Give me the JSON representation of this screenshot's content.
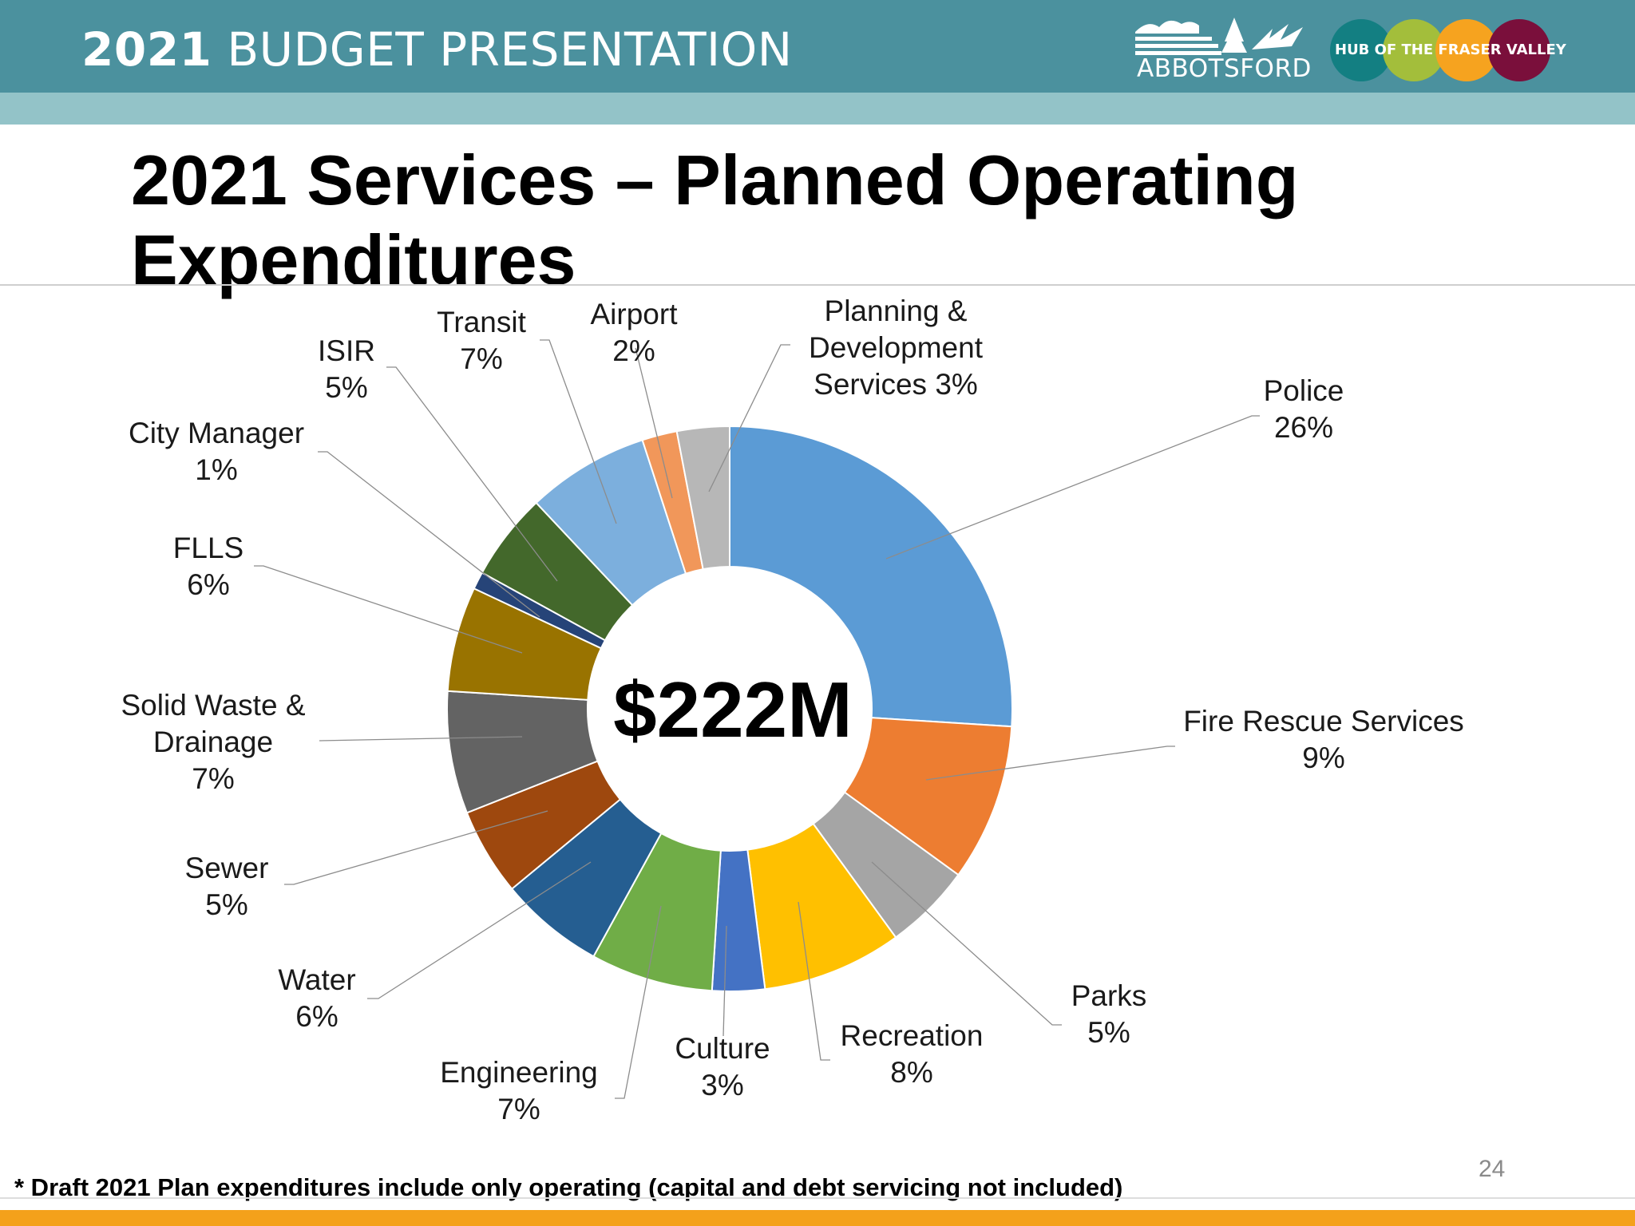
{
  "header": {
    "deck_title_year": "2021",
    "deck_title_rest": "BUDGET PRESENTATION",
    "logo_text": "ABBOTSFORD",
    "tagline": "HUB OF THE FRASER VALLEY",
    "band_color": "#4b919e",
    "accent_bar_color": "#f4a11b",
    "tagline_circle_colors": [
      "#137f82",
      "#a3be3b",
      "#f6a31f",
      "#7a0f3b"
    ]
  },
  "slide": {
    "title": "2021 Services – Planned Operating Expenditures",
    "footnote": "* Draft 2021 Plan expenditures include only operating (capital and debt servicing not included)",
    "page_number": "24"
  },
  "chart_data": {
    "type": "pie",
    "donut": true,
    "center_label": "$222M",
    "legend": "none (data labels with leader lines)",
    "slices": [
      {
        "label": "Police",
        "value": 26,
        "pct_label": "26%",
        "color": "#5b9bd5"
      },
      {
        "label": "Fire Rescue Services",
        "value": 9,
        "pct_label": "9%",
        "color": "#ed7d31"
      },
      {
        "label": "Parks",
        "value": 5,
        "pct_label": "5%",
        "color": "#a5a5a5"
      },
      {
        "label": "Recreation",
        "value": 8,
        "pct_label": "8%",
        "color": "#ffc000"
      },
      {
        "label": "Culture",
        "value": 3,
        "pct_label": "3%",
        "color": "#4472c4"
      },
      {
        "label": "Engineering",
        "value": 7,
        "pct_label": "7%",
        "color": "#70ad47"
      },
      {
        "label": "Water",
        "value": 6,
        "pct_label": "6%",
        "color": "#255e91"
      },
      {
        "label": "Sewer",
        "value": 5,
        "pct_label": "5%",
        "color": "#9e480e"
      },
      {
        "label": "Solid Waste & Drainage",
        "value": 7,
        "pct_label": "7%",
        "color": "#636363"
      },
      {
        "label": "FLLS",
        "value": 6,
        "pct_label": "6%",
        "color": "#997300"
      },
      {
        "label": "City Manager",
        "value": 1,
        "pct_label": "1%",
        "color": "#264478"
      },
      {
        "label": "ISIR",
        "value": 5,
        "pct_label": "5%",
        "color": "#43682b"
      },
      {
        "label": "Transit",
        "value": 7,
        "pct_label": "7%",
        "color": "#7cafdd"
      },
      {
        "label": "Airport",
        "value": 2,
        "pct_label": "2%",
        "color": "#f1975a"
      },
      {
        "label": "Planning & Development Services",
        "value": 3,
        "pct_label": "3%",
        "color": "#b7b7b7"
      }
    ],
    "label_lines": [
      [
        "Police",
        "26%"
      ],
      [
        "Fire Rescue Services",
        "9%"
      ],
      [
        "Parks",
        "5%"
      ],
      [
        "Recreation",
        "8%"
      ],
      [
        "Culture",
        "3%"
      ],
      [
        "Engineering",
        "7%"
      ],
      [
        "Water",
        "6%"
      ],
      [
        "Sewer",
        "5%"
      ],
      [
        "Solid Waste &",
        "Drainage",
        "7%"
      ],
      [
        "FLLS",
        "6%"
      ],
      [
        "City Manager",
        "1%"
      ],
      [
        "ISIR",
        "5%"
      ],
      [
        "Transit",
        "7%"
      ],
      [
        "Airport",
        "2%"
      ],
      [
        "Planning &",
        "Development",
        "Services 3%"
      ]
    ]
  }
}
